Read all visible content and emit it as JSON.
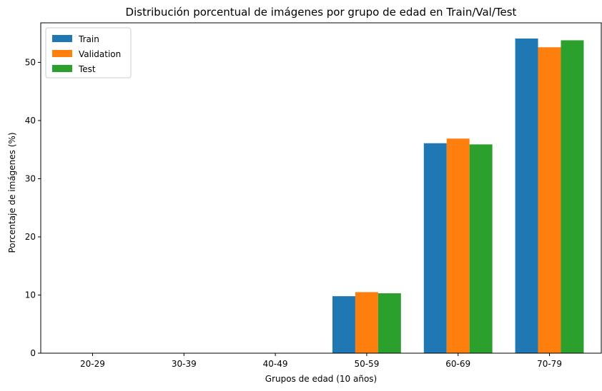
{
  "chart_data": {
    "type": "bar",
    "title": "Distribución porcentual de imágenes por grupo de edad en Train/Val/Test",
    "xlabel": "Grupos de edad (10 años)",
    "ylabel": "Porcentaje de imágenes (%)",
    "categories": [
      "20-29",
      "30-39",
      "40-49",
      "50-59",
      "60-69",
      "70-79"
    ],
    "series": [
      {
        "name": "Train",
        "color": "#1f77b4",
        "values": [
          0,
          0,
          0,
          9.8,
          36.1,
          54.1
        ]
      },
      {
        "name": "Validation",
        "color": "#ff7f0e",
        "values": [
          0,
          0,
          0,
          10.5,
          36.9,
          52.6
        ]
      },
      {
        "name": "Test",
        "color": "#2ca02c",
        "values": [
          0,
          0,
          0,
          10.3,
          35.9,
          53.8
        ]
      }
    ],
    "ylim": [
      0,
      56.8
    ],
    "yticks": [
      0,
      10,
      20,
      30,
      40,
      50
    ],
    "grid": false,
    "legend_position": "top-left"
  }
}
